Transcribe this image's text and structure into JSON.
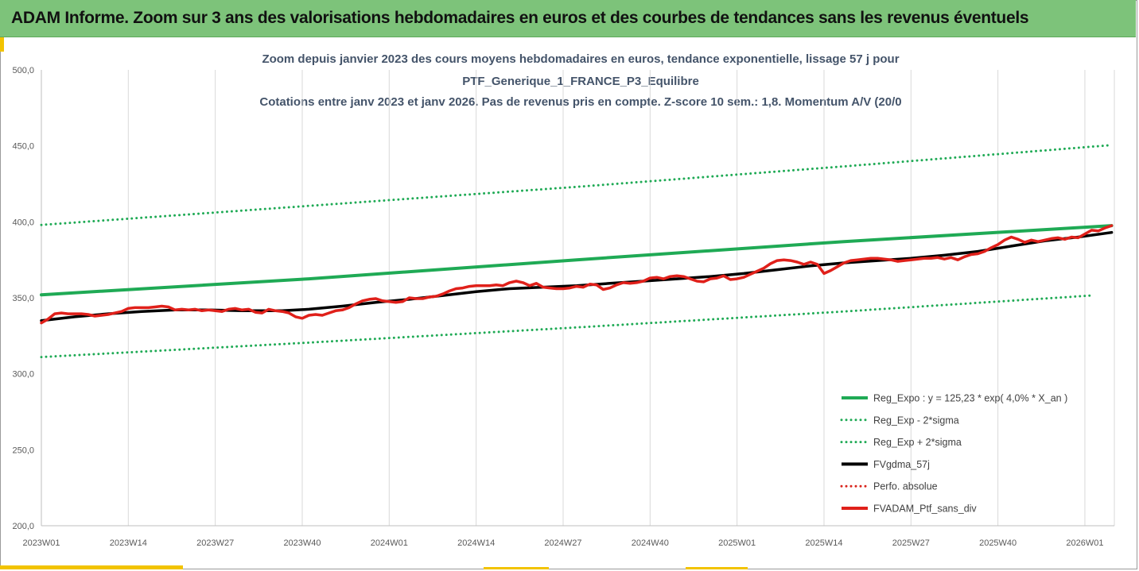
{
  "header": {
    "title": "ADAM Informe. Zoom sur 3 ans des valorisations hebdomadaires en euros et des courbes de tendances sans les revenus éventuels"
  },
  "colors": {
    "header_bg": "#7dc37a",
    "accent": "#f2c300",
    "reg_expo": "#1faa55",
    "sigma": "#1faa55",
    "gdma": "#000000",
    "perfo": "#d9241c",
    "fvadam": "#e0201a"
  },
  "chart_data": {
    "type": "line",
    "title_lines": [
      "Zoom depuis janvier 2023 des cours moyens hebdomadaires  en euros, tendance exponentielle, lissage 57 j pour",
      "PTF_Generique_1_FRANCE_P3_Equilibre",
      "Cotations entre janv 2023 et janv 2026. Pas de revenus pris en compte. Z-score 10 sem.: 1,8. Momentum A/V (20/0"
    ],
    "ylim": [
      200,
      500
    ],
    "yticks": [
      "200,0",
      "250,0",
      "300,0",
      "350,0",
      "400,0",
      "450,0",
      "500,0"
    ],
    "x_week_count": 160,
    "xticks": [
      {
        "week": 0,
        "label": "2023W01"
      },
      {
        "week": 13,
        "label": "2023W14"
      },
      {
        "week": 26,
        "label": "2023W27"
      },
      {
        "week": 39,
        "label": "2023W40"
      },
      {
        "week": 52,
        "label": "2024W01"
      },
      {
        "week": 65,
        "label": "2024W14"
      },
      {
        "week": 78,
        "label": "2024W27"
      },
      {
        "week": 91,
        "label": "2024W40"
      },
      {
        "week": 104,
        "label": "2025W01"
      },
      {
        "week": 117,
        "label": "2025W14"
      },
      {
        "week": 130,
        "label": "2025W27"
      },
      {
        "week": 143,
        "label": "2025W40"
      },
      {
        "week": 156,
        "label": "2026W01"
      }
    ],
    "grid": "vertical",
    "legend_position": "bottom-right",
    "series": [
      {
        "name": "Reg_Expo : y = 125,23 * exp( 4,0% *  X_an )",
        "style": "solid",
        "color": "#1faa55",
        "points": [
          [
            0,
            352.0
          ],
          [
            40,
            362.5
          ],
          [
            80,
            375.0
          ],
          [
            120,
            387.0
          ],
          [
            160,
            397.5
          ]
        ]
      },
      {
        "name": "Reg_Exp - 2*sigma",
        "style": "dotted",
        "color": "#1faa55",
        "points": [
          [
            0,
            311.0
          ],
          [
            40,
            320.5
          ],
          [
            80,
            330.5
          ],
          [
            120,
            341.0
          ],
          [
            157,
            351.5
          ]
        ]
      },
      {
        "name": "Reg_Exp + 2*sigma",
        "style": "dotted",
        "color": "#1faa55",
        "points": [
          [
            0,
            398.0
          ],
          [
            40,
            410.5
          ],
          [
            80,
            423.0
          ],
          [
            120,
            436.5
          ],
          [
            160,
            450.5
          ]
        ]
      },
      {
        "name": "FVgdma_57j",
        "style": "solid",
        "color": "#000000",
        "points": [
          [
            0,
            335.0
          ],
          [
            5,
            337.5
          ],
          [
            10,
            339.5
          ],
          [
            15,
            341.0
          ],
          [
            20,
            342.0
          ],
          [
            25,
            342.0
          ],
          [
            30,
            341.5
          ],
          [
            36,
            341.5
          ],
          [
            40,
            342.5
          ],
          [
            45,
            344.5
          ],
          [
            50,
            347.0
          ],
          [
            55,
            349.0
          ],
          [
            60,
            351.5
          ],
          [
            65,
            354.0
          ],
          [
            70,
            356.0
          ],
          [
            75,
            357.0
          ],
          [
            80,
            358.0
          ],
          [
            85,
            359.5
          ],
          [
            90,
            361.0
          ],
          [
            95,
            362.5
          ],
          [
            100,
            364.0
          ],
          [
            105,
            366.0
          ],
          [
            110,
            368.5
          ],
          [
            115,
            371.0
          ],
          [
            120,
            373.0
          ],
          [
            125,
            374.5
          ],
          [
            130,
            376.0
          ],
          [
            135,
            378.0
          ],
          [
            140,
            380.5
          ],
          [
            145,
            384.0
          ],
          [
            150,
            387.5
          ],
          [
            155,
            390.0
          ],
          [
            160,
            393.0
          ]
        ]
      },
      {
        "name": "Perfo. absolue",
        "style": "dotted",
        "color": "#d9241c",
        "points": []
      },
      {
        "name": "FVADAM_Ptf_sans_div",
        "style": "solid",
        "color": "#e0201a",
        "points": [
          [
            0,
            333.5
          ],
          [
            1,
            336.0
          ],
          [
            2,
            339.5
          ],
          [
            3,
            340.0
          ],
          [
            4,
            339.5
          ],
          [
            5,
            339.5
          ],
          [
            6,
            339.5
          ],
          [
            7,
            339.0
          ],
          [
            8,
            338.0
          ],
          [
            9,
            338.5
          ],
          [
            10,
            339.0
          ],
          [
            11,
            340.0
          ],
          [
            12,
            341.0
          ],
          [
            13,
            343.0
          ],
          [
            14,
            343.5
          ],
          [
            15,
            343.5
          ],
          [
            16,
            343.5
          ],
          [
            17,
            344.0
          ],
          [
            18,
            344.5
          ],
          [
            19,
            344.0
          ],
          [
            20,
            342.0
          ],
          [
            21,
            342.5
          ],
          [
            22,
            342.0
          ],
          [
            23,
            342.5
          ],
          [
            24,
            341.5
          ],
          [
            25,
            342.0
          ],
          [
            26,
            341.5
          ],
          [
            27,
            341.0
          ],
          [
            28,
            342.5
          ],
          [
            29,
            343.0
          ],
          [
            30,
            342.0
          ],
          [
            31,
            342.5
          ],
          [
            32,
            340.5
          ],
          [
            33,
            340.0
          ],
          [
            34,
            342.5
          ],
          [
            35,
            341.5
          ],
          [
            36,
            341.0
          ],
          [
            37,
            340.0
          ],
          [
            38,
            337.5
          ],
          [
            39,
            336.5
          ],
          [
            40,
            338.5
          ],
          [
            41,
            339.0
          ],
          [
            42,
            338.5
          ],
          [
            43,
            340.0
          ],
          [
            44,
            341.5
          ],
          [
            45,
            342.0
          ],
          [
            46,
            343.5
          ],
          [
            47,
            346.0
          ],
          [
            48,
            348.0
          ],
          [
            49,
            349.0
          ],
          [
            50,
            349.5
          ],
          [
            51,
            348.0
          ],
          [
            52,
            347.5
          ],
          [
            53,
            347.0
          ],
          [
            54,
            347.5
          ],
          [
            55,
            350.0
          ],
          [
            56,
            349.5
          ],
          [
            57,
            349.5
          ],
          [
            58,
            350.5
          ],
          [
            59,
            351.0
          ],
          [
            60,
            352.5
          ],
          [
            61,
            354.5
          ],
          [
            62,
            356.0
          ],
          [
            63,
            356.5
          ],
          [
            64,
            357.5
          ],
          [
            65,
            358.0
          ],
          [
            66,
            358.0
          ],
          [
            67,
            358.0
          ],
          [
            68,
            358.5
          ],
          [
            69,
            358.0
          ],
          [
            70,
            360.0
          ],
          [
            71,
            361.0
          ],
          [
            72,
            360.0
          ],
          [
            73,
            358.0
          ],
          [
            74,
            359.5
          ],
          [
            75,
            357.0
          ],
          [
            76,
            356.5
          ],
          [
            77,
            356.0
          ],
          [
            78,
            356.0
          ],
          [
            79,
            356.5
          ],
          [
            80,
            357.5
          ],
          [
            81,
            357.0
          ],
          [
            82,
            359.0
          ],
          [
            83,
            358.5
          ],
          [
            84,
            355.5
          ],
          [
            85,
            356.5
          ],
          [
            86,
            358.5
          ],
          [
            87,
            360.0
          ],
          [
            88,
            359.5
          ],
          [
            89,
            360.0
          ],
          [
            90,
            361.0
          ],
          [
            91,
            363.0
          ],
          [
            92,
            363.5
          ],
          [
            93,
            362.5
          ],
          [
            94,
            364.0
          ],
          [
            95,
            364.5
          ],
          [
            96,
            364.0
          ],
          [
            97,
            362.5
          ],
          [
            98,
            361.0
          ],
          [
            99,
            360.5
          ],
          [
            100,
            362.5
          ],
          [
            101,
            363.0
          ],
          [
            102,
            364.5
          ],
          [
            103,
            362.0
          ],
          [
            104,
            362.5
          ],
          [
            105,
            363.5
          ],
          [
            106,
            365.5
          ],
          [
            107,
            367.5
          ],
          [
            108,
            369.5
          ],
          [
            109,
            372.5
          ],
          [
            110,
            374.5
          ],
          [
            111,
            375.0
          ],
          [
            112,
            374.5
          ],
          [
            113,
            373.5
          ],
          [
            114,
            372.0
          ],
          [
            115,
            373.5
          ],
          [
            116,
            372.0
          ],
          [
            117,
            366.0
          ],
          [
            118,
            368.0
          ],
          [
            119,
            370.5
          ],
          [
            120,
            373.0
          ],
          [
            121,
            374.5
          ],
          [
            122,
            375.0
          ],
          [
            123,
            375.5
          ],
          [
            124,
            376.0
          ],
          [
            125,
            376.0
          ],
          [
            126,
            375.5
          ],
          [
            127,
            375.0
          ],
          [
            128,
            374.0
          ],
          [
            129,
            374.5
          ],
          [
            130,
            375.0
          ],
          [
            131,
            375.5
          ],
          [
            132,
            376.0
          ],
          [
            133,
            376.0
          ],
          [
            134,
            376.5
          ],
          [
            135,
            375.5
          ],
          [
            136,
            376.5
          ],
          [
            137,
            375.0
          ],
          [
            138,
            377.0
          ],
          [
            139,
            378.5
          ],
          [
            140,
            379.0
          ],
          [
            141,
            380.5
          ],
          [
            142,
            383.0
          ],
          [
            143,
            385.0
          ],
          [
            144,
            388.0
          ],
          [
            145,
            390.0
          ],
          [
            146,
            388.5
          ],
          [
            147,
            386.5
          ],
          [
            148,
            388.0
          ],
          [
            149,
            387.0
          ],
          [
            150,
            388.0
          ],
          [
            151,
            389.0
          ],
          [
            152,
            389.5
          ],
          [
            153,
            388.5
          ],
          [
            154,
            390.0
          ],
          [
            155,
            389.5
          ],
          [
            156,
            392.0
          ],
          [
            157,
            394.5
          ],
          [
            158,
            394.0
          ],
          [
            159,
            396.0
          ],
          [
            160,
            397.5
          ]
        ]
      }
    ]
  }
}
